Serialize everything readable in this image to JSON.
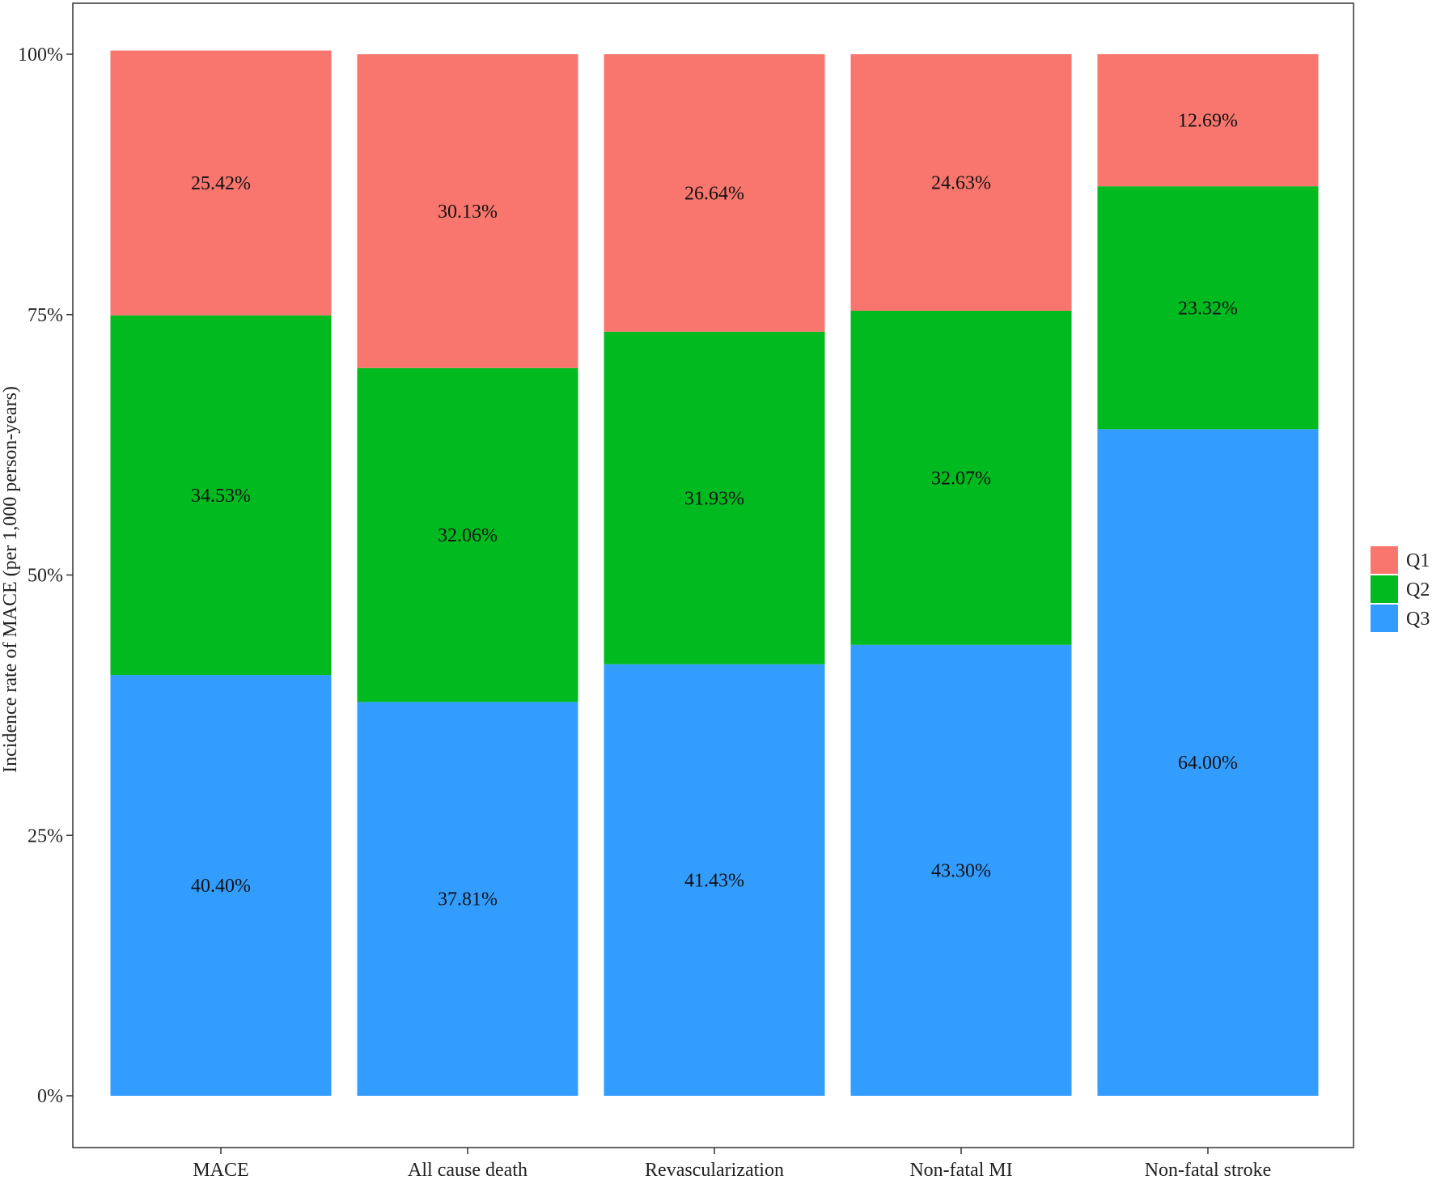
{
  "chart_data": {
    "type": "bar",
    "stacked": true,
    "title": "",
    "xlabel": "",
    "ylabel": "Incidence rate of MACE (per 1,000 person-years)",
    "ylim": [
      0,
      100
    ],
    "yticks": [
      0,
      25,
      50,
      75,
      100
    ],
    "ytick_labels": [
      "0%",
      "25%",
      "50%",
      "75%",
      "100%"
    ],
    "legend_position": "right",
    "categories": [
      "MACE",
      "All cause death",
      "Revascularization",
      "Non-fatal MI",
      "Non-fatal stroke"
    ],
    "series": [
      {
        "name": "Q3",
        "color": "#339dff",
        "values": [
          40.4,
          37.81,
          41.43,
          43.3,
          64.0
        ],
        "labels": [
          "40.40%",
          "37.81%",
          "41.43%",
          "43.30%",
          "64.00%"
        ]
      },
      {
        "name": "Q2",
        "color": "#00ba1f",
        "values": [
          34.53,
          32.06,
          31.93,
          32.07,
          23.32
        ],
        "labels": [
          "34.53%",
          "32.06%",
          "31.93%",
          "32.07%",
          "23.32%"
        ]
      },
      {
        "name": "Q1",
        "color": "#f8766d",
        "values": [
          25.42,
          30.13,
          26.64,
          24.63,
          12.69
        ],
        "labels": [
          "25.42%",
          "30.13%",
          "26.64%",
          "24.63%",
          "12.69%"
        ]
      }
    ],
    "legend": [
      "Q1",
      "Q2",
      "Q3"
    ]
  }
}
